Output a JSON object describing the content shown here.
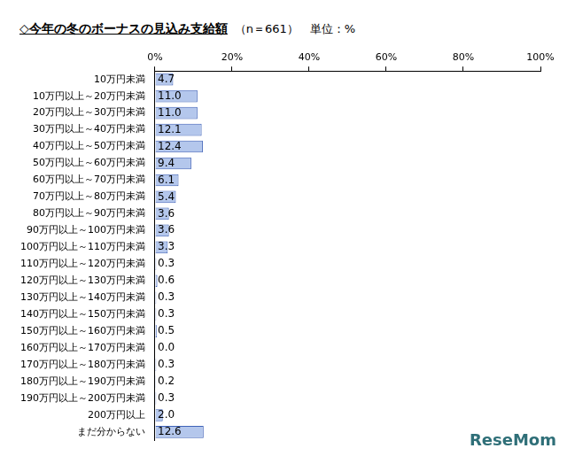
{
  "chart_data": {
    "type": "bar",
    "orientation": "horizontal",
    "title": "◇今年の冬のボーナスの見込み支給額",
    "subtitle": "（n＝661）　単位：%",
    "annotations": [
      "ReseMom"
    ],
    "categories": [
      "10万円未満",
      "10万円以上～20万円未満",
      "20万円以上～30万円未満",
      "30万円以上～40万円未満",
      "40万円以上～50万円未満",
      "50万円以上～60万円未満",
      "60万円以上～70万円未満",
      "70万円以上～80万円未満",
      "80万円以上～90万円未満",
      "90万円以上～100万円未満",
      "100万円以上～110万円未満",
      "110万円以上～120万円未満",
      "120万円以上～130万円未満",
      "130万円以上～140万円未満",
      "140万円以上～150万円未満",
      "150万円以上～160万円未満",
      "160万円以上～170万円未満",
      "170万円以上～180万円未満",
      "180万円以上～190万円未満",
      "190万円以上～200万円未満",
      "200万円以上",
      "まだ分からない"
    ],
    "values": [
      4.7,
      11.0,
      11.0,
      12.1,
      12.4,
      9.4,
      6.1,
      5.4,
      3.6,
      3.6,
      3.3,
      0.3,
      0.6,
      0.3,
      0.3,
      0.5,
      0.0,
      0.3,
      0.2,
      0.3,
      2.0,
      12.6
    ],
    "value_labels": [
      "4.7",
      "11.0",
      "11.0",
      "12.1",
      "12.4",
      "9.4",
      "6.1",
      "5.4",
      "3.6",
      "3.6",
      "3.3",
      "0.3",
      "0.6",
      "0.3",
      "0.3",
      "0.5",
      "0.0",
      "0.3",
      "0.2",
      "0.3",
      "2.0",
      "12.6"
    ],
    "data_labels": true,
    "color": "#b4c7ec",
    "xlim": [
      0,
      100
    ],
    "xticks": [
      {
        "value": 0,
        "label": "0%"
      },
      {
        "value": 20,
        "label": "20%"
      },
      {
        "value": 40,
        "label": "40%"
      },
      {
        "value": 60,
        "label": "60%"
      },
      {
        "value": 80,
        "label": "80%"
      },
      {
        "value": 100,
        "label": "100%"
      }
    ],
    "grid": false
  }
}
